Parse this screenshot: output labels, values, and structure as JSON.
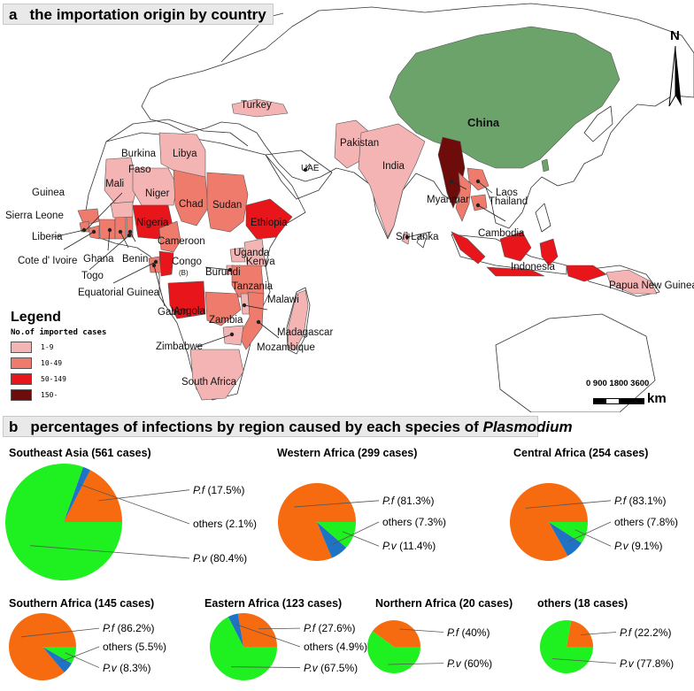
{
  "panel_a": {
    "letter": "a",
    "title": "the importation origin by country",
    "countries": {
      "turkey": "Turkey",
      "china": "China",
      "pakistan": "Pakistan",
      "india": "India",
      "uae": "UAE",
      "myanmar": "Myanmar",
      "laos": "Laos",
      "thailand": "Thailand",
      "cambodia": "Cambodia",
      "sri_lanka": "Sri Lanka",
      "indonesia": "Indonesia",
      "papua": "Papua New Guinea",
      "libya": "Libya",
      "burkina": "Burkina",
      "faso": "Faso",
      "mali": "Mali",
      "niger": "Niger",
      "chad": "Chad",
      "sudan": "Sudan",
      "guinea": "Guinea",
      "sierra_leone": "Sierra Leone",
      "nigeria": "Nigeria",
      "ethiopia": "Ethiopia",
      "liberia": "Liberia",
      "cameroon": "Cameroon",
      "cote": "Cote d' Ivoire",
      "ghana": "Ghana",
      "benin": "Benin",
      "congo": "Congo",
      "congo_sub": "(B)",
      "uganda": "Uganda",
      "kenya": "Kenya",
      "togo": "Togo",
      "eq_guinea": "Equatorial Guinea",
      "burundi": "Burundi",
      "tanzania": "Tanzania",
      "gabon": "Gabon",
      "angola": "Angola",
      "malawi": "Malawi",
      "zambia": "Zambia",
      "madagascar": "Madagascar",
      "zimbabwe": "Zimbabwe",
      "mozambique": "Mozambique",
      "south_africa": "South Africa"
    },
    "legend": {
      "title": "Legend",
      "subtitle": "No.of imported cases",
      "items": [
        {
          "label": "1-9",
          "color": "#f4b4b4"
        },
        {
          "label": "10-49",
          "color": "#ef7b6c"
        },
        {
          "label": "50-149",
          "color": "#e8151b"
        },
        {
          "label": "150-",
          "color": "#6e0b0b"
        }
      ]
    },
    "scale": {
      "numbers": "0  900 1800     3600",
      "unit": "km"
    },
    "north": "N"
  },
  "panel_b": {
    "letter": "b",
    "title_pre": "percentages of infections by region caused by each species of ",
    "title_italic": "Plasmodium",
    "colors": {
      "pf": "#f66a10",
      "others": "#1f72c4",
      "pv": "#1ff01f"
    },
    "pies": [
      {
        "title": "Southeast Asia (561 cases)",
        "pf_name": "P.f",
        "pf_pct": "(17.5%)",
        "others": "others (2.1%)",
        "pv_name": "P.v",
        "pv_pct": "(80.4%)"
      },
      {
        "title": "Western Africa (299 cases)",
        "pf_name": "P.f",
        "pf_pct": "(81.3%)",
        "others": "others (7.3%)",
        "pv_name": "P.v",
        "pv_pct": "(11.4%)"
      },
      {
        "title": "Central Africa (254 cases)",
        "pf_name": "P.f",
        "pf_pct": "(83.1%)",
        "others": "others (7.8%)",
        "pv_name": "P.v",
        "pv_pct": "(9.1%)"
      },
      {
        "title": "Southern Africa (145 cases)",
        "pf_name": "P.f",
        "pf_pct": "(86.2%)",
        "others": "others (5.5%)",
        "pv_name": "P.v",
        "pv_pct": "(8.3%)"
      },
      {
        "title": "Eastern Africa (123 cases)",
        "pf_name": "P.f",
        "pf_pct": "(27.6%)",
        "others": "others (4.9%)",
        "pv_name": "P.v",
        "pv_pct": "(67.5%)"
      },
      {
        "title": "Northern Africa (20 cases)",
        "pf_name": "P.f",
        "pf_pct": "(40%)",
        "others": "",
        "pv_name": "P.v",
        "pv_pct": "(60%)"
      },
      {
        "title": "others (18 cases)",
        "pf_name": "P.f",
        "pf_pct": "(22.2%)",
        "others": "",
        "pv_name": "P.v",
        "pv_pct": "(77.8%)"
      }
    ]
  },
  "chart_data": {
    "type": "pie",
    "title": "percentages of infections by region caused by each species of Plasmodium",
    "charts": [
      {
        "region": "Southeast Asia",
        "cases": 561,
        "slices": [
          {
            "name": "P.f",
            "value": 17.5
          },
          {
            "name": "others",
            "value": 2.1
          },
          {
            "name": "P.v",
            "value": 80.4
          }
        ]
      },
      {
        "region": "Western Africa",
        "cases": 299,
        "slices": [
          {
            "name": "P.f",
            "value": 81.3
          },
          {
            "name": "others",
            "value": 7.3
          },
          {
            "name": "P.v",
            "value": 11.4
          }
        ]
      },
      {
        "region": "Central Africa",
        "cases": 254,
        "slices": [
          {
            "name": "P.f",
            "value": 83.1
          },
          {
            "name": "others",
            "value": 7.8
          },
          {
            "name": "P.v",
            "value": 9.1
          }
        ]
      },
      {
        "region": "Southern Africa",
        "cases": 145,
        "slices": [
          {
            "name": "P.f",
            "value": 86.2
          },
          {
            "name": "others",
            "value": 5.5
          },
          {
            "name": "P.v",
            "value": 8.3
          }
        ]
      },
      {
        "region": "Eastern Africa",
        "cases": 123,
        "slices": [
          {
            "name": "P.f",
            "value": 27.6
          },
          {
            "name": "others",
            "value": 4.9
          },
          {
            "name": "P.v",
            "value": 67.5
          }
        ]
      },
      {
        "region": "Northern Africa",
        "cases": 20,
        "slices": [
          {
            "name": "P.f",
            "value": 40
          },
          {
            "name": "P.v",
            "value": 60
          }
        ]
      },
      {
        "region": "others",
        "cases": 18,
        "slices": [
          {
            "name": "P.f",
            "value": 22.2
          },
          {
            "name": "P.v",
            "value": 77.8
          }
        ]
      }
    ]
  }
}
